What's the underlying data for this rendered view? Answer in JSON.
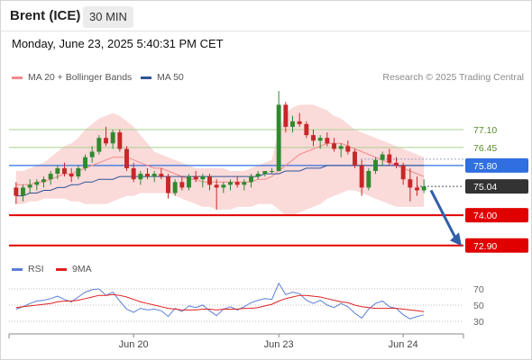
{
  "header": {
    "instrument": "Brent (ICE)",
    "timeframe": "30 MIN",
    "datetime": "Monday, June 23, 2025 5:40:31 PM CET"
  },
  "legend": {
    "items": [
      {
        "label": "MA 20 + Bollinger Bands",
        "color": "#f28a8a"
      },
      {
        "label": "MA 50",
        "color": "#2f5597"
      }
    ],
    "credit": "Research © 2025 Trading Central"
  },
  "rsi_legend": {
    "items": [
      {
        "label": "RSI",
        "color": "#5b7fd6"
      },
      {
        "label": "9MA",
        "color": "#e02020"
      }
    ]
  },
  "colors": {
    "bull": "#2f8a2f",
    "bear": "#c62828",
    "band_fill": "#fbdada",
    "resistance": "#a9d18e",
    "pivot": "#2f6fe0",
    "support": "#e00000",
    "current": "#333333",
    "arrow": "#2f5fa8"
  },
  "chart_data": [
    {
      "type": "candlestick",
      "x_tick_labels": [
        "Jun 20",
        "Jun 23",
        "Jun 24"
      ],
      "ylim": [
        72.6,
        78.6
      ],
      "levels": [
        {
          "label": "77.10",
          "value": 77.1,
          "kind": "resistance"
        },
        {
          "label": "76.45",
          "value": 76.45,
          "kind": "resistance"
        },
        {
          "label": "75.80",
          "value": 75.8,
          "kind": "pivot"
        },
        {
          "label": "75.04",
          "value": 75.04,
          "kind": "current"
        },
        {
          "label": "74.00",
          "value": 74.0,
          "kind": "support"
        },
        {
          "label": "72.90",
          "value": 72.9,
          "kind": "support"
        }
      ],
      "ohlc": [
        [
          75.0,
          75.2,
          74.4,
          74.7
        ],
        [
          74.7,
          75.1,
          74.5,
          75.0
        ],
        [
          75.0,
          75.3,
          74.8,
          75.1
        ],
        [
          75.1,
          75.3,
          74.9,
          75.2
        ],
        [
          75.2,
          75.4,
          75.0,
          75.3
        ],
        [
          75.3,
          75.6,
          75.1,
          75.5
        ],
        [
          75.5,
          75.8,
          75.3,
          75.7
        ],
        [
          75.7,
          75.9,
          75.4,
          75.5
        ],
        [
          75.5,
          75.7,
          75.2,
          75.4
        ],
        [
          75.4,
          75.8,
          75.3,
          75.7
        ],
        [
          75.7,
          76.2,
          75.6,
          76.1
        ],
        [
          76.1,
          76.5,
          75.9,
          76.3
        ],
        [
          76.3,
          76.9,
          76.2,
          76.8
        ],
        [
          76.8,
          77.2,
          76.5,
          76.6
        ],
        [
          76.6,
          77.1,
          76.4,
          77.0
        ],
        [
          77.0,
          77.1,
          76.3,
          76.4
        ],
        [
          76.4,
          76.5,
          75.6,
          75.7
        ],
        [
          75.7,
          75.9,
          75.2,
          75.3
        ],
        [
          75.3,
          75.6,
          75.1,
          75.5
        ],
        [
          75.5,
          75.7,
          75.3,
          75.4
        ],
        [
          75.4,
          75.6,
          75.2,
          75.5
        ],
        [
          75.5,
          75.7,
          75.3,
          75.4
        ],
        [
          75.4,
          75.5,
          74.6,
          74.8
        ],
        [
          74.8,
          75.3,
          74.7,
          75.2
        ],
        [
          75.2,
          75.4,
          74.9,
          75.0
        ],
        [
          75.0,
          75.5,
          74.9,
          75.4
        ],
        [
          75.4,
          75.6,
          75.2,
          75.3
        ],
        [
          75.3,
          75.5,
          75.0,
          75.4
        ],
        [
          75.4,
          75.5,
          74.9,
          75.1
        ],
        [
          75.1,
          75.3,
          74.2,
          75.0
        ],
        [
          75.0,
          75.2,
          74.8,
          75.1
        ],
        [
          75.1,
          75.3,
          74.9,
          75.2
        ],
        [
          75.2,
          75.4,
          75.0,
          75.1
        ],
        [
          75.1,
          75.3,
          74.9,
          75.2
        ],
        [
          75.2,
          75.5,
          75.0,
          75.4
        ],
        [
          75.4,
          75.6,
          75.3,
          75.5
        ],
        [
          75.5,
          75.6,
          75.4,
          75.6
        ],
        [
          75.6,
          75.7,
          75.5,
          75.6
        ],
        [
          75.6,
          78.5,
          75.6,
          78.0
        ],
        [
          78.0,
          78.1,
          77.0,
          77.2
        ],
        [
          77.2,
          77.6,
          77.0,
          77.4
        ],
        [
          77.4,
          77.7,
          77.2,
          77.3
        ],
        [
          77.3,
          77.4,
          76.8,
          76.9
        ],
        [
          76.9,
          77.1,
          76.5,
          76.7
        ],
        [
          76.7,
          76.9,
          76.4,
          76.8
        ],
        [
          76.8,
          77.0,
          76.5,
          76.6
        ],
        [
          76.6,
          76.8,
          76.3,
          76.4
        ],
        [
          76.4,
          76.6,
          76.1,
          76.5
        ],
        [
          76.5,
          76.7,
          76.2,
          76.3
        ],
        [
          76.3,
          76.4,
          75.7,
          75.8
        ],
        [
          75.8,
          76.0,
          74.7,
          75.0
        ],
        [
          75.0,
          75.7,
          74.9,
          75.6
        ],
        [
          75.6,
          76.1,
          75.5,
          76.0
        ],
        [
          76.0,
          76.3,
          75.8,
          76.2
        ],
        [
          76.2,
          76.4,
          75.8,
          75.9
        ],
        [
          75.9,
          76.1,
          75.7,
          75.8
        ],
        [
          75.8,
          75.9,
          75.1,
          75.3
        ],
        [
          75.3,
          75.7,
          74.5,
          75.0
        ],
        [
          75.0,
          75.4,
          74.7,
          74.9
        ],
        [
          74.9,
          75.3,
          74.8,
          75.04
        ]
      ],
      "ma20": [
        75.1,
        75.1,
        75.1,
        75.2,
        75.2,
        75.3,
        75.4,
        75.5,
        75.5,
        75.6,
        75.7,
        75.8,
        75.9,
        76.0,
        76.1,
        76.1,
        76.1,
        76.0,
        75.9,
        75.8,
        75.7,
        75.7,
        75.6,
        75.5,
        75.4,
        75.3,
        75.3,
        75.2,
        75.2,
        75.2,
        75.2,
        75.2,
        75.2,
        75.2,
        75.2,
        75.3,
        75.3,
        75.4,
        75.6,
        75.8,
        76.0,
        76.2,
        76.3,
        76.4,
        76.5,
        76.6,
        76.6,
        76.6,
        76.5,
        76.4,
        76.3,
        76.2,
        76.1,
        76.0,
        75.9,
        75.8,
        75.7,
        75.6,
        75.5,
        75.4
      ],
      "ma50": [
        74.7,
        74.7,
        74.8,
        74.8,
        74.9,
        74.9,
        75.0,
        75.0,
        75.1,
        75.1,
        75.2,
        75.2,
        75.3,
        75.3,
        75.3,
        75.4,
        75.4,
        75.4,
        75.4,
        75.4,
        75.4,
        75.4,
        75.4,
        75.4,
        75.4,
        75.4,
        75.4,
        75.4,
        75.4,
        75.4,
        75.4,
        75.4,
        75.4,
        75.4,
        75.4,
        75.4,
        75.5,
        75.5,
        75.5,
        75.6,
        75.6,
        75.6,
        75.7,
        75.7,
        75.7,
        75.8,
        75.8,
        75.8,
        75.8,
        75.8,
        75.8,
        75.8,
        75.8,
        75.8,
        75.8,
        75.8,
        75.8,
        75.8,
        75.8,
        75.8
      ],
      "bb_upper": [
        75.6,
        75.6,
        75.7,
        75.8,
        75.9,
        76.1,
        76.3,
        76.5,
        76.6,
        76.8,
        77.1,
        77.3,
        77.5,
        77.6,
        77.7,
        77.6,
        77.4,
        77.2,
        76.9,
        76.6,
        76.3,
        76.2,
        76.1,
        76.0,
        75.9,
        75.8,
        75.7,
        75.7,
        75.7,
        75.7,
        75.7,
        75.6,
        75.6,
        75.6,
        75.7,
        75.8,
        75.9,
        76.0,
        77.1,
        77.7,
        77.9,
        78.0,
        78.0,
        78.0,
        77.9,
        77.8,
        77.6,
        77.5,
        77.3,
        77.1,
        77.0,
        76.9,
        76.8,
        76.7,
        76.6,
        76.5,
        76.4,
        76.3,
        76.2,
        76.1
      ],
      "bb_lower": [
        74.4,
        74.4,
        74.5,
        74.5,
        74.6,
        74.6,
        74.6,
        74.6,
        74.5,
        74.5,
        74.4,
        74.4,
        74.4,
        74.4,
        74.5,
        74.6,
        74.7,
        74.7,
        74.8,
        74.8,
        74.8,
        74.8,
        74.8,
        74.7,
        74.6,
        74.5,
        74.4,
        74.3,
        74.3,
        74.2,
        74.2,
        74.2,
        74.3,
        74.3,
        74.3,
        74.4,
        74.4,
        74.4,
        74.2,
        74.0,
        74.0,
        74.1,
        74.2,
        74.3,
        74.4,
        74.6,
        74.7,
        74.8,
        74.9,
        74.9,
        74.8,
        74.7,
        74.6,
        74.5,
        74.4,
        74.3,
        74.3,
        74.3,
        74.3,
        74.3
      ]
    },
    {
      "type": "line",
      "title": "RSI",
      "y_tick_labels": [
        "70",
        "50",
        "30"
      ],
      "ylim": [
        20,
        80
      ],
      "series": [
        {
          "name": "RSI",
          "values": [
            45,
            48,
            52,
            55,
            56,
            58,
            61,
            57,
            54,
            60,
            66,
            69,
            70,
            62,
            66,
            55,
            45,
            41,
            46,
            44,
            45,
            43,
            36,
            46,
            42,
            49,
            47,
            50,
            43,
            37,
            45,
            48,
            44,
            48,
            53,
            56,
            58,
            57,
            77,
            63,
            66,
            64,
            56,
            52,
            56,
            50,
            47,
            52,
            48,
            40,
            34,
            45,
            52,
            55,
            48,
            46,
            38,
            33,
            36,
            38
          ]
        },
        {
          "name": "9MA",
          "values": [
            47,
            48,
            49,
            50,
            51,
            52,
            54,
            55,
            55,
            56,
            58,
            60,
            62,
            62,
            63,
            62,
            60,
            57,
            54,
            52,
            50,
            48,
            46,
            45,
            44,
            44,
            44,
            45,
            45,
            44,
            45,
            45,
            45,
            46,
            46,
            47,
            49,
            51,
            55,
            58,
            60,
            62,
            62,
            61,
            60,
            58,
            56,
            54,
            53,
            50,
            48,
            47,
            46,
            46,
            46,
            46,
            45,
            44,
            43,
            42
          ]
        }
      ]
    }
  ]
}
